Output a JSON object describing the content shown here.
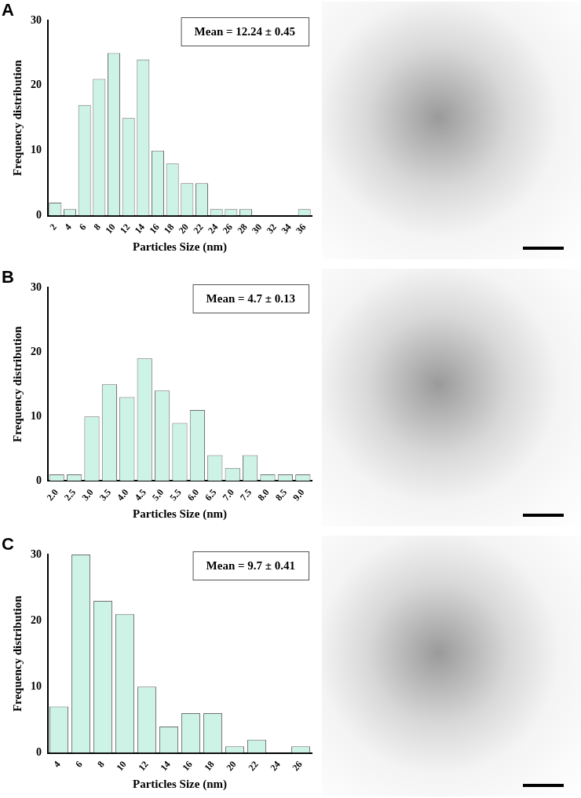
{
  "chart_data": [
    {
      "type": "bar",
      "panel_label": "A",
      "annotation": "Mean = 12.24 ± 0.45",
      "x_label": "Particles Size (nm)",
      "y_label": "Frequency distribution",
      "categories": [
        "2",
        "4",
        "6",
        "8",
        "10",
        "12",
        "14",
        "16",
        "18",
        "20",
        "22",
        "24",
        "26",
        "28",
        "30",
        "32",
        "34",
        "36"
      ],
      "values": [
        2,
        1,
        17,
        21,
        25,
        15,
        24,
        10,
        8,
        5,
        5,
        1,
        1,
        1,
        0,
        0,
        0,
        1
      ],
      "color": "#ccf3e6",
      "ylim": [
        0,
        30
      ],
      "yticks": [
        0,
        10,
        20,
        30
      ],
      "grid": false
    },
    {
      "type": "bar",
      "panel_label": "B",
      "annotation": "Mean = 4.7 ± 0.13",
      "x_label": "Particles Size (nm)",
      "y_label": "Frequency distribution",
      "categories": [
        "2.0",
        "2.5",
        "3.0",
        "3.5",
        "4.0",
        "4.5",
        "5.0",
        "5.5",
        "6.0",
        "6.5",
        "7.0",
        "7.5",
        "8.0",
        "8.5",
        "9.0"
      ],
      "values": [
        1,
        1,
        10,
        15,
        13,
        19,
        14,
        9,
        11,
        4,
        2,
        4,
        1,
        1,
        1
      ],
      "color": "#ccf3e6",
      "ylim": [
        0,
        30
      ],
      "yticks": [
        0,
        10,
        20,
        30
      ],
      "grid": false
    },
    {
      "type": "bar",
      "panel_label": "C",
      "annotation": "Mean = 9.7 ± 0.41",
      "x_label": "Particles Size (nm)",
      "y_label": "Frequency distribution",
      "categories": [
        "4",
        "6",
        "8",
        "10",
        "12",
        "14",
        "16",
        "18",
        "20",
        "22",
        "24",
        "26"
      ],
      "values": [
        7,
        30,
        23,
        21,
        10,
        4,
        6,
        6,
        1,
        2,
        0,
        1
      ],
      "color": "#ccf3e6",
      "ylim": [
        0,
        30
      ],
      "yticks": [
        0,
        10,
        20,
        30
      ],
      "grid": false
    }
  ]
}
